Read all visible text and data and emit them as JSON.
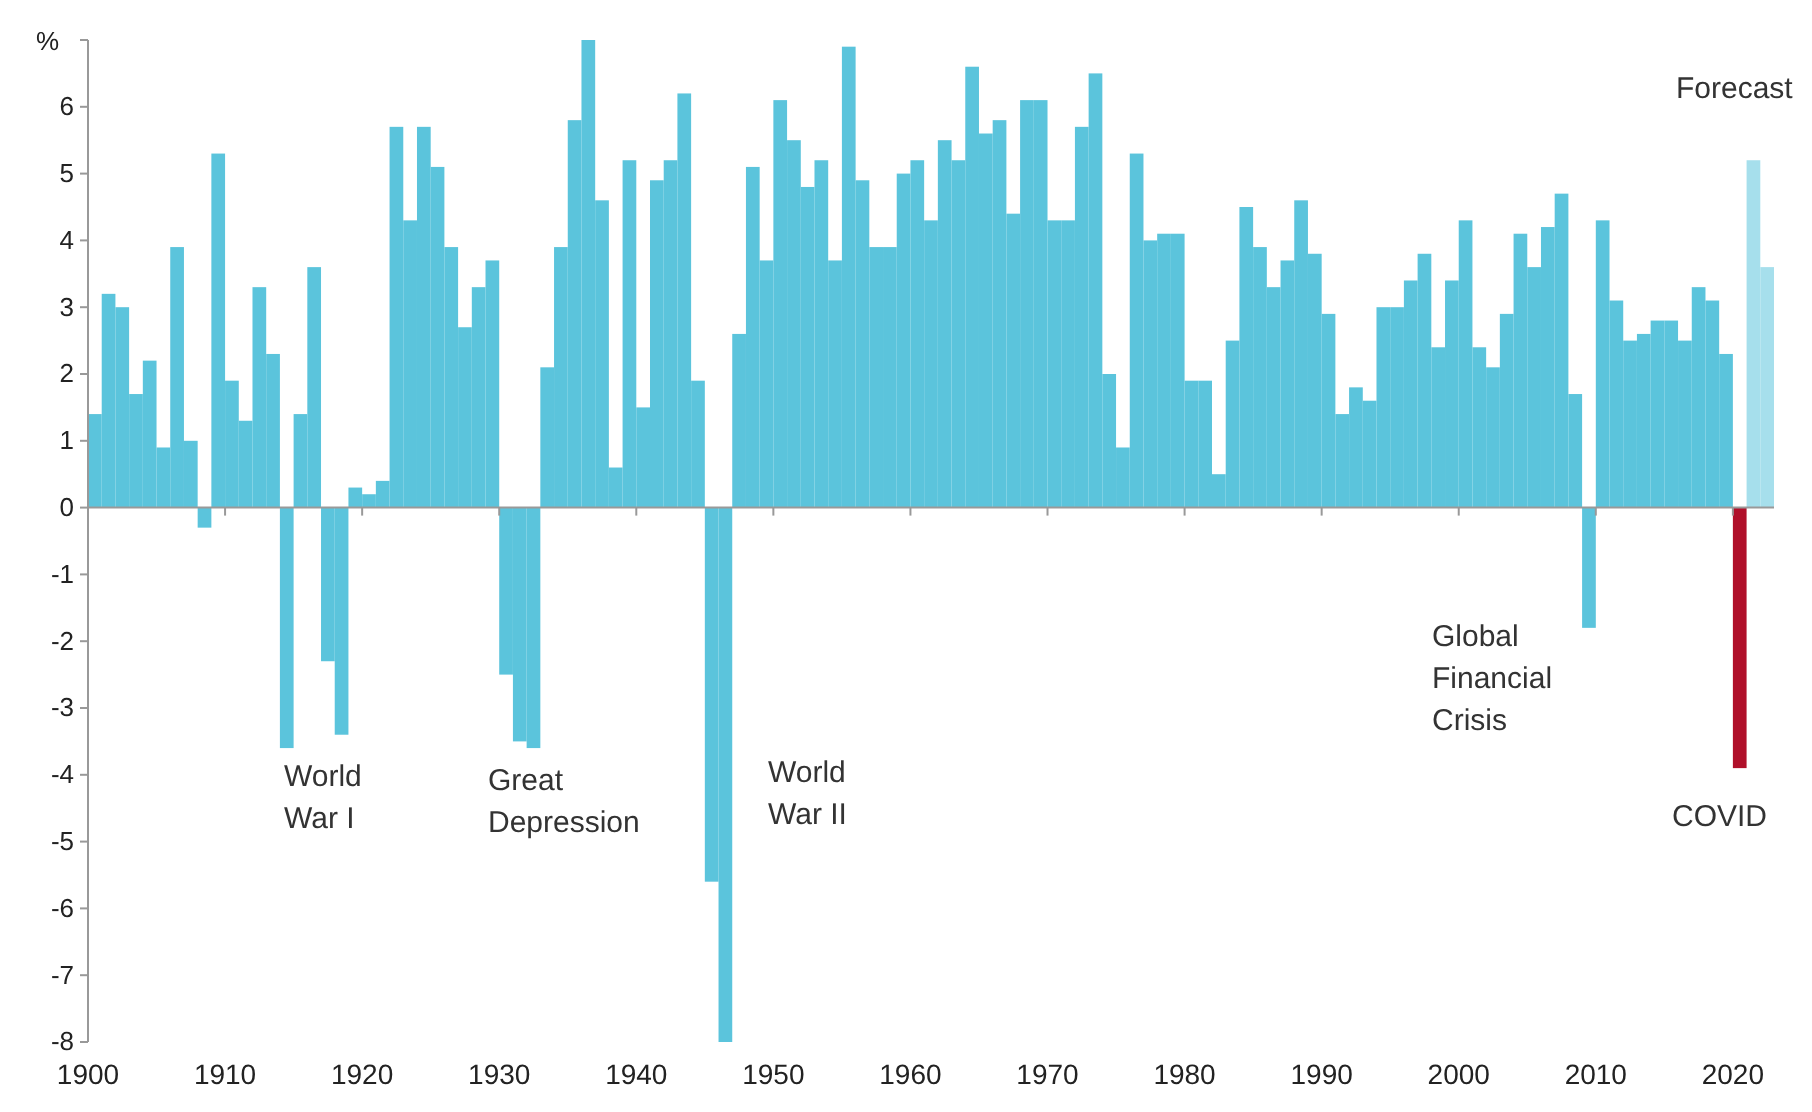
{
  "chart_data": {
    "type": "bar",
    "ylabel": "%",
    "x": [
      1900,
      1901,
      1902,
      1903,
      1904,
      1905,
      1906,
      1907,
      1908,
      1909,
      1910,
      1911,
      1912,
      1913,
      1914,
      1915,
      1916,
      1917,
      1918,
      1919,
      1920,
      1921,
      1922,
      1923,
      1924,
      1925,
      1926,
      1927,
      1928,
      1929,
      1930,
      1931,
      1932,
      1933,
      1934,
      1935,
      1936,
      1937,
      1938,
      1939,
      1940,
      1941,
      1942,
      1943,
      1944,
      1945,
      1946,
      1947,
      1948,
      1949,
      1950,
      1951,
      1952,
      1953,
      1954,
      1955,
      1956,
      1957,
      1958,
      1959,
      1960,
      1961,
      1962,
      1963,
      1964,
      1965,
      1966,
      1967,
      1968,
      1969,
      1970,
      1971,
      1972,
      1973,
      1974,
      1975,
      1976,
      1977,
      1978,
      1979,
      1980,
      1981,
      1982,
      1983,
      1984,
      1985,
      1986,
      1987,
      1988,
      1989,
      1990,
      1991,
      1992,
      1993,
      1994,
      1995,
      1996,
      1997,
      1998,
      1999,
      2000,
      2001,
      2002,
      2003,
      2004,
      2005,
      2006,
      2007,
      2008,
      2009,
      2010,
      2011,
      2012,
      2013,
      2014,
      2015,
      2016,
      2017,
      2018,
      2019,
      2020,
      2021,
      2022
    ],
    "values": [
      1.4,
      3.2,
      3.0,
      1.7,
      2.2,
      0.9,
      3.9,
      1.0,
      -0.3,
      5.3,
      1.9,
      1.3,
      3.3,
      2.3,
      -3.6,
      1.4,
      3.6,
      -2.3,
      -3.4,
      0.3,
      0.2,
      0.4,
      5.7,
      4.3,
      5.7,
      5.1,
      3.9,
      2.7,
      3.3,
      3.7,
      -2.5,
      -3.5,
      -3.6,
      2.1,
      3.9,
      5.8,
      7.0,
      4.6,
      0.6,
      5.2,
      1.5,
      4.9,
      5.2,
      6.2,
      1.9,
      -5.6,
      -8.0,
      2.6,
      5.1,
      3.7,
      6.1,
      5.5,
      4.8,
      5.2,
      3.7,
      6.9,
      4.9,
      3.9,
      3.9,
      5.0,
      5.2,
      4.3,
      5.5,
      5.2,
      6.6,
      5.6,
      5.8,
      4.4,
      6.1,
      6.1,
      4.3,
      4.3,
      5.7,
      6.5,
      2.0,
      0.9,
      5.3,
      4.0,
      4.1,
      4.1,
      1.9,
      1.9,
      0.5,
      2.5,
      4.5,
      3.9,
      3.3,
      3.7,
      4.6,
      3.8,
      2.9,
      1.4,
      1.8,
      1.6,
      3.0,
      3.0,
      3.4,
      3.8,
      2.4,
      3.4,
      4.3,
      2.4,
      2.1,
      2.9,
      4.1,
      3.6,
      4.2,
      4.7,
      1.7,
      -1.8,
      4.3,
      3.1,
      2.5,
      2.6,
      2.8,
      2.8,
      2.5,
      3.3,
      3.1,
      2.3,
      -3.9,
      5.2,
      3.6
    ],
    "colors": [
      "#5bc4dc",
      "#5bc4dc",
      "#5bc4dc",
      "#5bc4dc",
      "#5bc4dc",
      "#5bc4dc",
      "#5bc4dc",
      "#5bc4dc",
      "#5bc4dc",
      "#5bc4dc",
      "#5bc4dc",
      "#5bc4dc",
      "#5bc4dc",
      "#5bc4dc",
      "#5bc4dc",
      "#5bc4dc",
      "#5bc4dc",
      "#5bc4dc",
      "#5bc4dc",
      "#5bc4dc",
      "#5bc4dc",
      "#5bc4dc",
      "#5bc4dc",
      "#5bc4dc",
      "#5bc4dc",
      "#5bc4dc",
      "#5bc4dc",
      "#5bc4dc",
      "#5bc4dc",
      "#5bc4dc",
      "#5bc4dc",
      "#5bc4dc",
      "#5bc4dc",
      "#5bc4dc",
      "#5bc4dc",
      "#5bc4dc",
      "#5bc4dc",
      "#5bc4dc",
      "#5bc4dc",
      "#5bc4dc",
      "#5bc4dc",
      "#5bc4dc",
      "#5bc4dc",
      "#5bc4dc",
      "#5bc4dc",
      "#5bc4dc",
      "#5bc4dc",
      "#5bc4dc",
      "#5bc4dc",
      "#5bc4dc",
      "#5bc4dc",
      "#5bc4dc",
      "#5bc4dc",
      "#5bc4dc",
      "#5bc4dc",
      "#5bc4dc",
      "#5bc4dc",
      "#5bc4dc",
      "#5bc4dc",
      "#5bc4dc",
      "#5bc4dc",
      "#5bc4dc",
      "#5bc4dc",
      "#5bc4dc",
      "#5bc4dc",
      "#5bc4dc",
      "#5bc4dc",
      "#5bc4dc",
      "#5bc4dc",
      "#5bc4dc",
      "#5bc4dc",
      "#5bc4dc",
      "#5bc4dc",
      "#5bc4dc",
      "#5bc4dc",
      "#5bc4dc",
      "#5bc4dc",
      "#5bc4dc",
      "#5bc4dc",
      "#5bc4dc",
      "#5bc4dc",
      "#5bc4dc",
      "#5bc4dc",
      "#5bc4dc",
      "#5bc4dc",
      "#5bc4dc",
      "#5bc4dc",
      "#5bc4dc",
      "#5bc4dc",
      "#5bc4dc",
      "#5bc4dc",
      "#5bc4dc",
      "#5bc4dc",
      "#5bc4dc",
      "#5bc4dc",
      "#5bc4dc",
      "#5bc4dc",
      "#5bc4dc",
      "#5bc4dc",
      "#5bc4dc",
      "#5bc4dc",
      "#5bc4dc",
      "#5bc4dc",
      "#5bc4dc",
      "#5bc4dc",
      "#5bc4dc",
      "#5bc4dc",
      "#5bc4dc",
      "#5bc4dc",
      "#5bc4dc",
      "#5bc4dc",
      "#5bc4dc",
      "#5bc4dc",
      "#5bc4dc",
      "#5bc4dc",
      "#5bc4dc",
      "#5bc4dc",
      "#5bc4dc",
      "#5bc4dc",
      "#5bc4dc",
      "#b0102a",
      "#a6dfec",
      "#a6dfec"
    ],
    "xlim": [
      1900,
      2023
    ],
    "xticks": [
      1900,
      1910,
      1920,
      1930,
      1940,
      1950,
      1960,
      1970,
      1980,
      1990,
      2000,
      2010,
      2020
    ],
    "ylim": [
      -8,
      7
    ],
    "yticks": [
      -8,
      -7,
      -6,
      -5,
      -4,
      -3,
      -2,
      -1,
      0,
      1,
      2,
      3,
      4,
      5,
      6,
      {
        "value": 7,
        "label": null
      }
    ],
    "annotations": [
      "World War I",
      "Great Depression",
      "World War II",
      "Global Financial Crisis",
      "COVID",
      "Forecast"
    ]
  }
}
